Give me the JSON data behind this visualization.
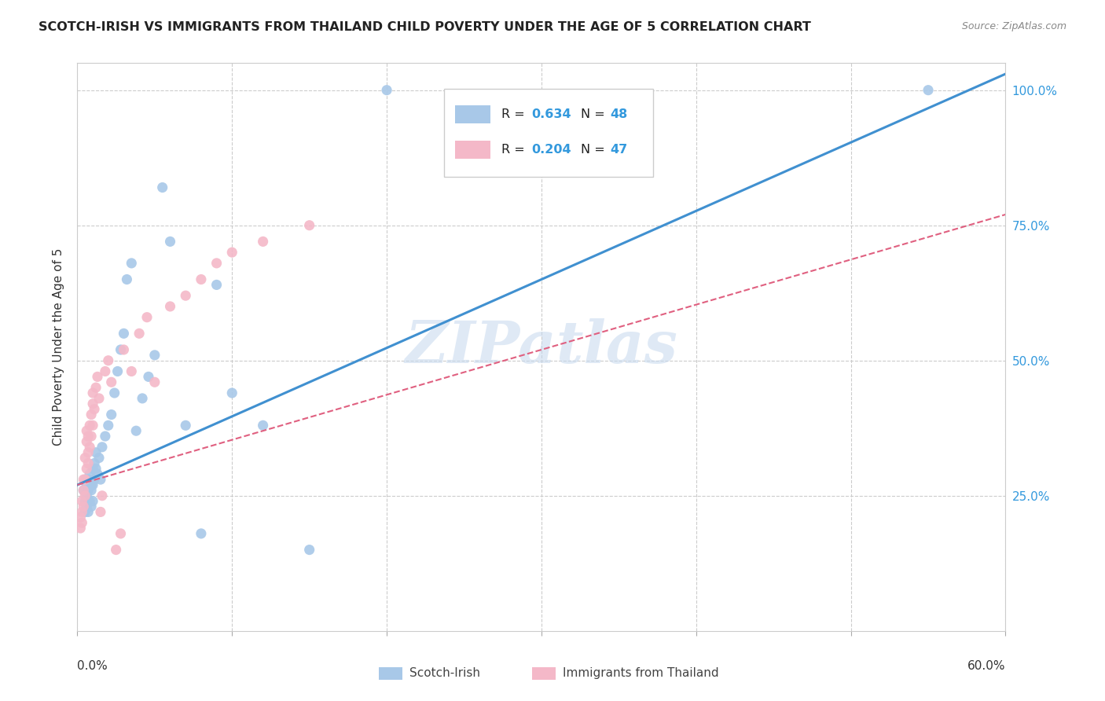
{
  "title": "SCOTCH-IRISH VS IMMIGRANTS FROM THAILAND CHILD POVERTY UNDER THE AGE OF 5 CORRELATION CHART",
  "source": "Source: ZipAtlas.com",
  "ylabel": "Child Poverty Under the Age of 5",
  "xlim": [
    0.0,
    0.6
  ],
  "ylim": [
    0.0,
    1.05
  ],
  "watermark": "ZIPatlas",
  "legend_r1": "R = 0.634",
  "legend_n1": "N = 48",
  "legend_r2": "R = 0.204",
  "legend_n2": "N = 47",
  "blue_color": "#a8c8e8",
  "pink_color": "#f4b8c8",
  "blue_line_color": "#4090d0",
  "pink_line_color": "#e06080",
  "blue_line_x0": 0.0,
  "blue_line_y0": 0.27,
  "blue_line_x1": 0.6,
  "blue_line_y1": 1.03,
  "pink_line_x0": 0.0,
  "pink_line_y0": 0.27,
  "pink_line_x1": 0.6,
  "pink_line_y1": 0.77,
  "scotch_irish_x": [
    0.004,
    0.005,
    0.005,
    0.006,
    0.006,
    0.006,
    0.007,
    0.007,
    0.007,
    0.008,
    0.008,
    0.009,
    0.009,
    0.009,
    0.01,
    0.01,
    0.01,
    0.011,
    0.011,
    0.012,
    0.012,
    0.013,
    0.014,
    0.015,
    0.016,
    0.018,
    0.02,
    0.022,
    0.024,
    0.026,
    0.028,
    0.03,
    0.032,
    0.035,
    0.038,
    0.042,
    0.046,
    0.05,
    0.055,
    0.06,
    0.07,
    0.08,
    0.09,
    0.1,
    0.12,
    0.15,
    0.2,
    0.55
  ],
  "scotch_irish_y": [
    0.26,
    0.24,
    0.22,
    0.25,
    0.27,
    0.23,
    0.28,
    0.26,
    0.22,
    0.29,
    0.24,
    0.27,
    0.26,
    0.23,
    0.3,
    0.27,
    0.24,
    0.31,
    0.28,
    0.33,
    0.3,
    0.29,
    0.32,
    0.28,
    0.34,
    0.36,
    0.38,
    0.4,
    0.44,
    0.48,
    0.52,
    0.55,
    0.65,
    0.68,
    0.37,
    0.43,
    0.47,
    0.51,
    0.82,
    0.72,
    0.38,
    0.18,
    0.64,
    0.44,
    0.38,
    0.15,
    1.0,
    1.0
  ],
  "thailand_x": [
    0.002,
    0.002,
    0.003,
    0.003,
    0.003,
    0.004,
    0.004,
    0.004,
    0.005,
    0.005,
    0.005,
    0.006,
    0.006,
    0.006,
    0.007,
    0.007,
    0.007,
    0.008,
    0.008,
    0.009,
    0.009,
    0.01,
    0.01,
    0.01,
    0.011,
    0.012,
    0.013,
    0.014,
    0.015,
    0.016,
    0.018,
    0.02,
    0.022,
    0.025,
    0.028,
    0.03,
    0.035,
    0.04,
    0.045,
    0.05,
    0.06,
    0.07,
    0.08,
    0.09,
    0.1,
    0.12,
    0.15
  ],
  "thailand_y": [
    0.19,
    0.21,
    0.22,
    0.24,
    0.2,
    0.26,
    0.28,
    0.23,
    0.32,
    0.28,
    0.25,
    0.35,
    0.37,
    0.3,
    0.33,
    0.36,
    0.31,
    0.38,
    0.34,
    0.4,
    0.36,
    0.42,
    0.38,
    0.44,
    0.41,
    0.45,
    0.47,
    0.43,
    0.22,
    0.25,
    0.48,
    0.5,
    0.46,
    0.15,
    0.18,
    0.52,
    0.48,
    0.55,
    0.58,
    0.46,
    0.6,
    0.62,
    0.65,
    0.68,
    0.7,
    0.72,
    0.75
  ]
}
